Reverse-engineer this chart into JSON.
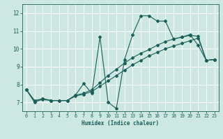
{
  "xlabel": "Humidex (Indice chaleur)",
  "bg_color": "#cce8e0",
  "line_color": "#1a5f5a",
  "grid_color": "#ffffff",
  "xlim": [
    -0.5,
    23.5
  ],
  "ylim": [
    6.5,
    12.5
  ],
  "xticks": [
    0,
    1,
    2,
    3,
    4,
    5,
    6,
    7,
    8,
    9,
    10,
    11,
    12,
    13,
    14,
    15,
    16,
    17,
    18,
    19,
    20,
    21,
    22,
    23
  ],
  "yticks": [
    7,
    8,
    9,
    10,
    11,
    12
  ],
  "line1_x": [
    0,
    1,
    2,
    3,
    4,
    5,
    6,
    7,
    8,
    9,
    10,
    11,
    12,
    13,
    14,
    15,
    16,
    17,
    18,
    19,
    20,
    21,
    22,
    23
  ],
  "line1_y": [
    7.7,
    7.0,
    7.2,
    7.1,
    7.1,
    7.1,
    7.4,
    8.05,
    7.5,
    10.65,
    7.0,
    6.65,
    9.4,
    10.8,
    11.85,
    11.85,
    11.55,
    11.55,
    10.55,
    10.65,
    10.8,
    10.2,
    9.35,
    9.4
  ],
  "line2_x": [
    0,
    1,
    2,
    3,
    4,
    5,
    6,
    7,
    8,
    9,
    10,
    11,
    12,
    13,
    14,
    15,
    16,
    17,
    18,
    19,
    20,
    21,
    22,
    23
  ],
  "line2_y": [
    7.7,
    7.1,
    7.2,
    7.1,
    7.1,
    7.1,
    7.4,
    7.5,
    7.7,
    8.1,
    8.5,
    8.85,
    9.2,
    9.5,
    9.75,
    9.95,
    10.2,
    10.4,
    10.55,
    10.65,
    10.75,
    10.7,
    9.35,
    9.4
  ],
  "line3_x": [
    0,
    1,
    2,
    3,
    4,
    5,
    6,
    7,
    8,
    9,
    10,
    11,
    12,
    13,
    14,
    15,
    16,
    17,
    18,
    19,
    20,
    21,
    22,
    23
  ],
  "line3_y": [
    7.7,
    7.05,
    7.15,
    7.1,
    7.1,
    7.1,
    7.35,
    7.45,
    7.6,
    7.9,
    8.2,
    8.5,
    8.8,
    9.1,
    9.35,
    9.6,
    9.8,
    10.0,
    10.15,
    10.3,
    10.45,
    10.6,
    9.35,
    9.4
  ]
}
